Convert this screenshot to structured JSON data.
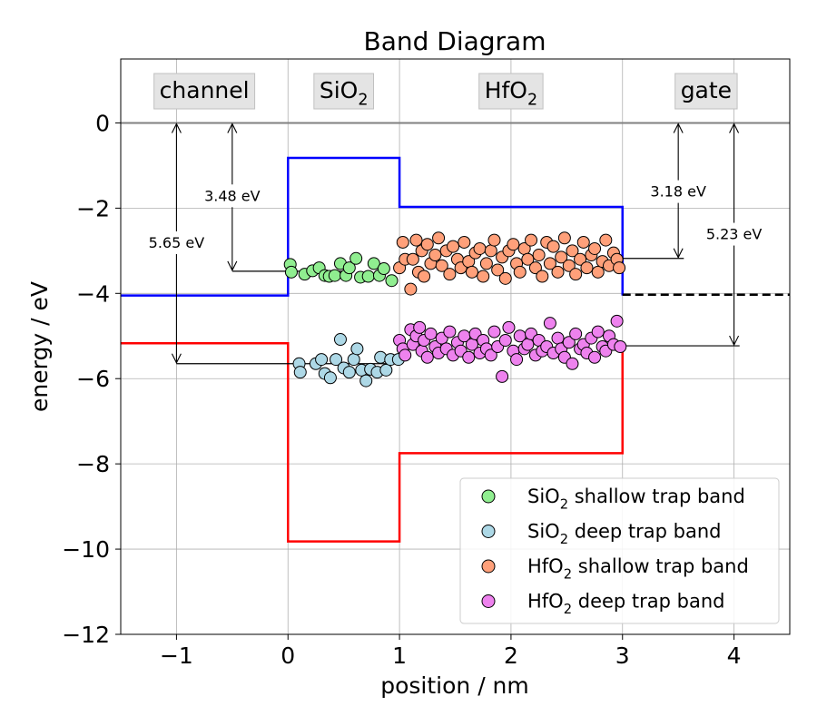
{
  "chart_data": {
    "type": "scatter",
    "title": "Band Diagram",
    "xlabel": "position / nm",
    "ylabel": "energy / eV",
    "xlim": [
      -1.5,
      4.5
    ],
    "ylim": [
      -12,
      1.5
    ],
    "grid": true,
    "xticks": [
      -1,
      0,
      1,
      2,
      3,
      4
    ],
    "yticks": [
      0,
      -2,
      -4,
      -6,
      -8,
      -10,
      -12
    ],
    "legend_position": "lower-right",
    "region_labels": [
      {
        "text": "channel",
        "x": -0.75
      },
      {
        "text": "SiO",
        "sub": "2",
        "x": 0.5
      },
      {
        "text": "HfO",
        "sub": "2",
        "x": 2.0
      },
      {
        "text": "gate",
        "x": 3.75
      }
    ],
    "bands": [
      {
        "name": "conduction band",
        "color": "#0000ff",
        "points": [
          [
            -1.5,
            -4.05
          ],
          [
            0,
            -4.05
          ],
          [
            0,
            -0.82
          ],
          [
            1,
            -0.82
          ],
          [
            1,
            -1.97
          ],
          [
            3,
            -1.97
          ],
          [
            3,
            -4.05
          ]
        ]
      },
      {
        "name": "valence band",
        "color": "#ff0000",
        "points": [
          [
            -1.5,
            -5.17
          ],
          [
            0,
            -5.17
          ],
          [
            0,
            -9.82
          ],
          [
            1,
            -9.82
          ],
          [
            1,
            -7.75
          ],
          [
            3,
            -7.75
          ],
          [
            3,
            -5.17
          ]
        ]
      },
      {
        "name": "gate fermi level",
        "color": "#000000",
        "dashed": true,
        "points": [
          [
            3,
            -4.03
          ],
          [
            4.5,
            -4.03
          ]
        ]
      },
      {
        "name": "vacuum level",
        "color": "#808080",
        "points": [
          [
            -1.5,
            0
          ],
          [
            4.5,
            0
          ]
        ]
      }
    ],
    "annotations": [
      {
        "label": "5.65 eV",
        "x": -1.0,
        "y_top": 0,
        "y_bottom": -5.65,
        "label_y": -2.8,
        "line_from": -1.0,
        "line_to": 0.9
      },
      {
        "label": "3.48 eV",
        "x": -0.5,
        "y_top": 0,
        "y_bottom": -3.48,
        "label_y": -1.7,
        "line_from": -0.5,
        "line_to": 0.5
      },
      {
        "label": "3.18 eV",
        "x": 3.5,
        "y_top": 0,
        "y_bottom": -3.18,
        "label_y": -1.6,
        "line_from": 3.0,
        "line_to": 3.55
      },
      {
        "label": "5.23 eV",
        "x": 4.0,
        "y_top": 0,
        "y_bottom": -5.23,
        "label_y": -2.6,
        "line_from": 3.0,
        "line_to": 4.05
      }
    ],
    "series": [
      {
        "name": "SiO",
        "name_sub": "2",
        "name_suffix": " shallow trap band",
        "color": "#90ee90",
        "x": [
          0.02,
          0.03,
          0.15,
          0.22,
          0.28,
          0.33,
          0.37,
          0.42,
          0.47,
          0.52,
          0.55,
          0.61,
          0.65,
          0.72,
          0.77,
          0.82,
          0.86,
          0.93
        ],
        "y": [
          -3.32,
          -3.5,
          -3.55,
          -3.47,
          -3.4,
          -3.58,
          -3.6,
          -3.58,
          -3.3,
          -3.58,
          -3.4,
          -3.18,
          -3.62,
          -3.6,
          -3.3,
          -3.58,
          -3.42,
          -3.7
        ]
      },
      {
        "name": "SiO",
        "name_sub": "2",
        "name_suffix": " deep trap band",
        "color": "#add8e6",
        "x": [
          0.1,
          0.11,
          0.25,
          0.3,
          0.33,
          0.38,
          0.43,
          0.47,
          0.5,
          0.55,
          0.59,
          0.62,
          0.66,
          0.7,
          0.74,
          0.8,
          0.83,
          0.88,
          0.92,
          0.99
        ],
        "y": [
          -5.65,
          -5.85,
          -5.65,
          -5.55,
          -5.88,
          -5.98,
          -5.55,
          -5.08,
          -5.75,
          -5.85,
          -5.55,
          -5.3,
          -5.8,
          -6.05,
          -5.78,
          -5.85,
          -5.5,
          -5.8,
          -5.55,
          -5.55
        ],
        "line_target": "5.65 eV"
      },
      {
        "name": "HfO",
        "name_sub": "2",
        "name_suffix": " shallow trap band",
        "color": "#ffa07a",
        "x": [
          1.0,
          1.03,
          1.05,
          1.1,
          1.12,
          1.15,
          1.17,
          1.2,
          1.22,
          1.25,
          1.28,
          1.32,
          1.35,
          1.38,
          1.42,
          1.45,
          1.48,
          1.52,
          1.55,
          1.58,
          1.62,
          1.65,
          1.68,
          1.72,
          1.75,
          1.78,
          1.82,
          1.85,
          1.88,
          1.92,
          1.95,
          1.98,
          2.02,
          2.05,
          2.08,
          2.12,
          2.15,
          2.18,
          2.22,
          2.25,
          2.28,
          2.32,
          2.35,
          2.38,
          2.42,
          2.45,
          2.48,
          2.52,
          2.55,
          2.58,
          2.62,
          2.65,
          2.68,
          2.72,
          2.75,
          2.78,
          2.82,
          2.85,
          2.88,
          2.92,
          2.95,
          2.97
        ],
        "y": [
          -3.4,
          -2.8,
          -3.2,
          -3.9,
          -3.2,
          -2.75,
          -3.5,
          -3.0,
          -3.6,
          -2.85,
          -3.3,
          -3.1,
          -2.7,
          -3.35,
          -3.0,
          -3.55,
          -2.9,
          -3.2,
          -3.4,
          -2.8,
          -3.25,
          -3.5,
          -3.05,
          -2.95,
          -3.6,
          -3.3,
          -3.0,
          -2.75,
          -3.45,
          -3.15,
          -3.65,
          -3.0,
          -2.85,
          -3.3,
          -3.5,
          -2.95,
          -3.2,
          -2.75,
          -3.4,
          -3.1,
          -3.6,
          -2.8,
          -3.3,
          -2.9,
          -3.5,
          -3.15,
          -2.7,
          -3.35,
          -3.0,
          -3.55,
          -3.2,
          -2.8,
          -3.4,
          -3.1,
          -2.95,
          -3.5,
          -3.25,
          -2.75,
          -3.35,
          -3.05,
          -3.2,
          -3.4
        ],
        "line_target": "3.48 eV"
      },
      {
        "name": "HfO",
        "name_sub": "2",
        "name_suffix": " deep trap band",
        "color": "#ee82ee",
        "x": [
          1.0,
          1.03,
          1.05,
          1.1,
          1.12,
          1.15,
          1.18,
          1.2,
          1.22,
          1.25,
          1.28,
          1.32,
          1.35,
          1.38,
          1.42,
          1.45,
          1.48,
          1.52,
          1.55,
          1.58,
          1.62,
          1.65,
          1.68,
          1.72,
          1.75,
          1.78,
          1.82,
          1.85,
          1.88,
          1.92,
          1.95,
          1.98,
          2.02,
          2.05,
          2.08,
          2.12,
          2.15,
          2.18,
          2.22,
          2.25,
          2.28,
          2.32,
          2.35,
          2.38,
          2.42,
          2.45,
          2.48,
          2.52,
          2.55,
          2.58,
          2.62,
          2.65,
          2.68,
          2.72,
          2.75,
          2.78,
          2.82,
          2.85,
          2.88,
          2.92,
          2.95,
          2.98
        ],
        "y": [
          -5.1,
          -5.3,
          -5.45,
          -4.85,
          -5.2,
          -5.0,
          -4.8,
          -5.35,
          -5.1,
          -5.5,
          -4.95,
          -5.25,
          -5.4,
          -5.05,
          -5.3,
          -4.9,
          -5.45,
          -5.15,
          -5.35,
          -5.0,
          -5.5,
          -5.2,
          -4.95,
          -5.4,
          -5.1,
          -5.3,
          -5.45,
          -4.9,
          -5.25,
          -5.95,
          -5.1,
          -4.8,
          -5.35,
          -5.55,
          -5.0,
          -5.3,
          -5.2,
          -4.95,
          -5.45,
          -5.1,
          -5.35,
          -5.25,
          -4.7,
          -5.4,
          -5.05,
          -5.3,
          -5.5,
          -5.15,
          -5.65,
          -4.95,
          -5.3,
          -5.2,
          -5.4,
          -5.05,
          -5.5,
          -4.9,
          -5.25,
          -5.35,
          -5.0,
          -5.2,
          -4.65,
          -5.25
        ],
        "line_target": "5.23 eV"
      }
    ]
  }
}
